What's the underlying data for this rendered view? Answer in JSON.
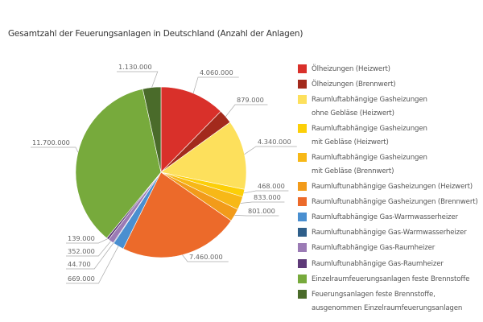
{
  "chart_data": {
    "type": "pie",
    "title": "Gesamtzahl der Feuerungsanlagen in Deutschland (Anzahl der Anlagen)",
    "legend_position": "right",
    "slices": [
      {
        "label": "Ölheizungen (Heizwert)",
        "value": 4060000,
        "value_label": "4.060.000",
        "color": "#d9302a"
      },
      {
        "label": "Ölheizungen (Brennwert)",
        "value": 879000,
        "value_label": "879.000",
        "color": "#a32a1c"
      },
      {
        "label": "Raumluftabhängige Gasheizungen\nohne Gebläse (Heizwert)",
        "value": 4340000,
        "value_label": "4.340.000",
        "color": "#fde05c"
      },
      {
        "label": "Raumluftabhängige Gasheizungen\nmit Gebläse (Heizwert)",
        "value": 468000,
        "value_label": "468.000",
        "color": "#fccf08"
      },
      {
        "label": "Raumluftabhängige Gasheizungen\nmit Gebläse (Brennwert)",
        "value": 833000,
        "value_label": "833.000",
        "color": "#f7b817"
      },
      {
        "label": "Raumluftunabhängige Gasheizungen  (Heizwert)",
        "value": 801000,
        "value_label": "801.000",
        "color": "#f29b1a"
      },
      {
        "label": "Raumluftunabhängige Gasheizungen  (Brennwert)",
        "value": 7460000,
        "value_label": "7.460.000",
        "color": "#ec6a2a"
      },
      {
        "label": "Raumluftabhängige Gas-Warmwasserheizer",
        "value": 669000,
        "value_label": "669.000",
        "color": "#4a8fd0"
      },
      {
        "label": "Raumluftunabhängige Gas-Warmwasserheizer",
        "value": 44700,
        "value_label": "44.700",
        "color": "#2f5f8a"
      },
      {
        "label": "Raumluftabhängige Gas-Raumheizer",
        "value": 352000,
        "value_label": "352.000",
        "color": "#9b7bb5"
      },
      {
        "label": "Raumluftunabhängige Gas-Raumheizer",
        "value": 139000,
        "value_label": "139.000",
        "color": "#5e3a78"
      },
      {
        "label": "Einzelraumfeuerungsanlagen feste Brennstoffe",
        "value": 11700000,
        "value_label": "11.700.000",
        "color": "#77aa3c"
      },
      {
        "label": "Feuerungsanlagen feste Brennstoffe,\nausgenommen Einzelraumfeuerungsanlagen",
        "value": 1130000,
        "value_label": "1.130.000",
        "color": "#4a6b2a"
      }
    ]
  }
}
